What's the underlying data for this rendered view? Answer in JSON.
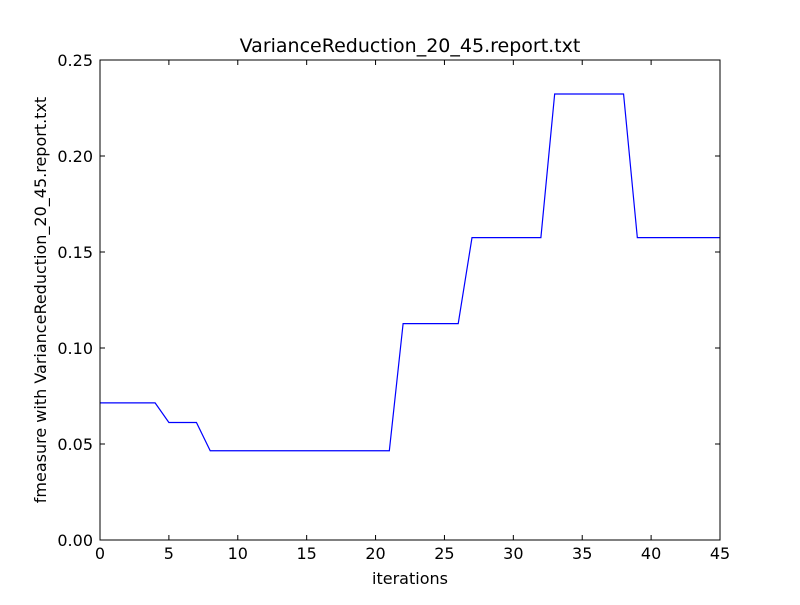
{
  "chart_data": {
    "type": "line",
    "title": "VarianceReduction_20_45.report.txt",
    "xlabel": "iterations",
    "ylabel": "fmeasure with VarianceReduction_20_45.report.txt",
    "xlim": [
      0,
      45
    ],
    "ylim": [
      0.0,
      0.25
    ],
    "x_ticks": [
      0,
      5,
      10,
      15,
      20,
      25,
      30,
      35,
      40,
      45
    ],
    "x_tick_labels": [
      "0",
      "5",
      "10",
      "15",
      "20",
      "25",
      "30",
      "35",
      "40",
      "45"
    ],
    "y_ticks": [
      0.0,
      0.05,
      0.1,
      0.15,
      0.2,
      0.25
    ],
    "y_tick_labels": [
      "0.00",
      "0.05",
      "0.10",
      "0.15",
      "0.20",
      "0.25"
    ],
    "grid": false,
    "legend": "none",
    "line_color": "#0000ff",
    "series": [
      {
        "x": [
          0,
          1,
          2,
          3,
          4,
          5,
          6,
          7,
          8,
          9,
          10,
          11,
          12,
          13,
          14,
          15,
          16,
          17,
          18,
          19,
          20,
          21,
          22,
          23,
          24,
          25,
          26,
          27,
          28,
          29,
          30,
          31,
          32,
          33,
          34,
          35,
          36,
          37,
          38,
          39,
          40,
          41,
          42,
          43,
          44,
          45
        ],
        "values": [
          0.0714,
          0.0714,
          0.0714,
          0.0714,
          0.0714,
          0.0612,
          0.0612,
          0.0612,
          0.0465,
          0.0465,
          0.0465,
          0.0465,
          0.0465,
          0.0465,
          0.0465,
          0.0465,
          0.0465,
          0.0465,
          0.0465,
          0.0465,
          0.0465,
          0.0465,
          0.1127,
          0.1127,
          0.1127,
          0.1127,
          0.1127,
          0.1575,
          0.1575,
          0.1575,
          0.1575,
          0.1575,
          0.1575,
          0.2323,
          0.2323,
          0.2323,
          0.2323,
          0.2323,
          0.2323,
          0.1575,
          0.1575,
          0.1575,
          0.1575,
          0.1575,
          0.1575,
          0.1575
        ]
      }
    ]
  }
}
